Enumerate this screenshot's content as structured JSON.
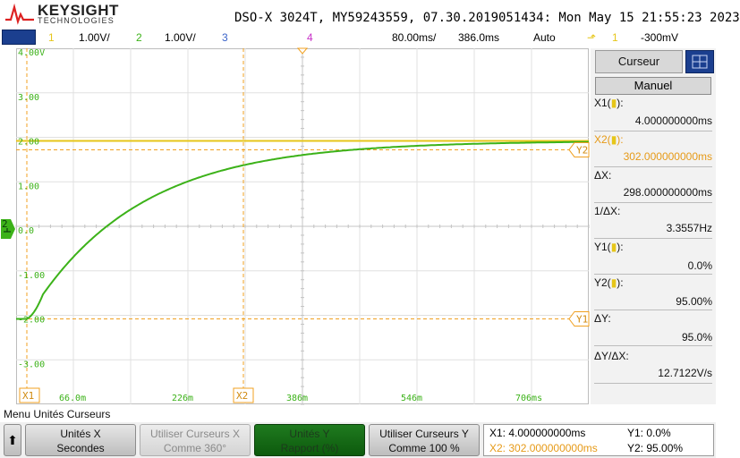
{
  "header": {
    "brand": "KEYSIGHT",
    "brand_sub": "TECHNOLOGIES",
    "title": "DSO-X 3024T, MY59243559, 07.30.2019051434: Mon May 15 21:55:23 2023"
  },
  "channels": {
    "ch1_num": "1",
    "ch1_scale": "1.00V/",
    "ch2_num": "2",
    "ch2_scale": "1.00V/",
    "ch3_num": "3",
    "ch4_num": "4",
    "timebase": "80.00ms/",
    "delay": "386.0ms",
    "trigger_mode": "Auto",
    "trigger_src": "1",
    "trigger_level": "-300mV"
  },
  "colors": {
    "ch1": "#e6c619",
    "ch2": "#3cb219",
    "ch3": "#3a63c9",
    "ch4": "#c830c8",
    "cursor": "#f0a020"
  },
  "graticule": {
    "y_labels": [
      "4.00V",
      "3.00",
      "2.00",
      "1.00",
      "0.0",
      "-1.00",
      "-2.00",
      "-3.00"
    ],
    "x_labels": [
      "66.0m",
      "226m",
      "386m",
      "546m",
      "706ms"
    ],
    "cursor_x1": "X1",
    "cursor_x2": "X2",
    "cursor_y1": "Y1",
    "cursor_y2": "Y2",
    "ch2_marker": "2"
  },
  "waveform": {
    "time_constant_div": 1.9,
    "start_level_V": -2.0,
    "final_level_V": 2.0
  },
  "side_panel": {
    "tab_label": "Curseur",
    "mode": "Manuel",
    "x1_label": "X1(",
    "x1_value": "4.000000000ms",
    "x2_label": "X2(",
    "x2_value": "302.000000000ms",
    "dx_label": "ΔX:",
    "dx_value": "298.000000000ms",
    "inv_dx_label": "1/ΔX:",
    "inv_dx_value": "3.3557Hz",
    "y1_label": "Y1(",
    "y1_value": "0.0%",
    "y2_label": "Y2(",
    "y2_value": "95.00%",
    "dy_label": "ΔY:",
    "dy_value": "95.0%",
    "dydx_label": "ΔY/ΔX:",
    "dydx_value": "12.7122V/s"
  },
  "menu": {
    "title": "Menu Unités Curseurs",
    "back_icon": "⬆",
    "keys": [
      {
        "line1": "Unités X",
        "line2": "Secondes"
      },
      {
        "line1": "Utiliser Curseurs X",
        "line2": "Comme 360°"
      },
      {
        "line1": "Unités Y",
        "line2": "Rapport (%)"
      },
      {
        "line1": "Utiliser Curseurs Y",
        "line2": "Comme 100 %"
      }
    ]
  },
  "readout": {
    "x1": "X1:  4.000000000ms",
    "x2": "X2:  302.000000000ms",
    "y1": "Y1: 0.0%",
    "y2": "Y2: 95.00%"
  }
}
